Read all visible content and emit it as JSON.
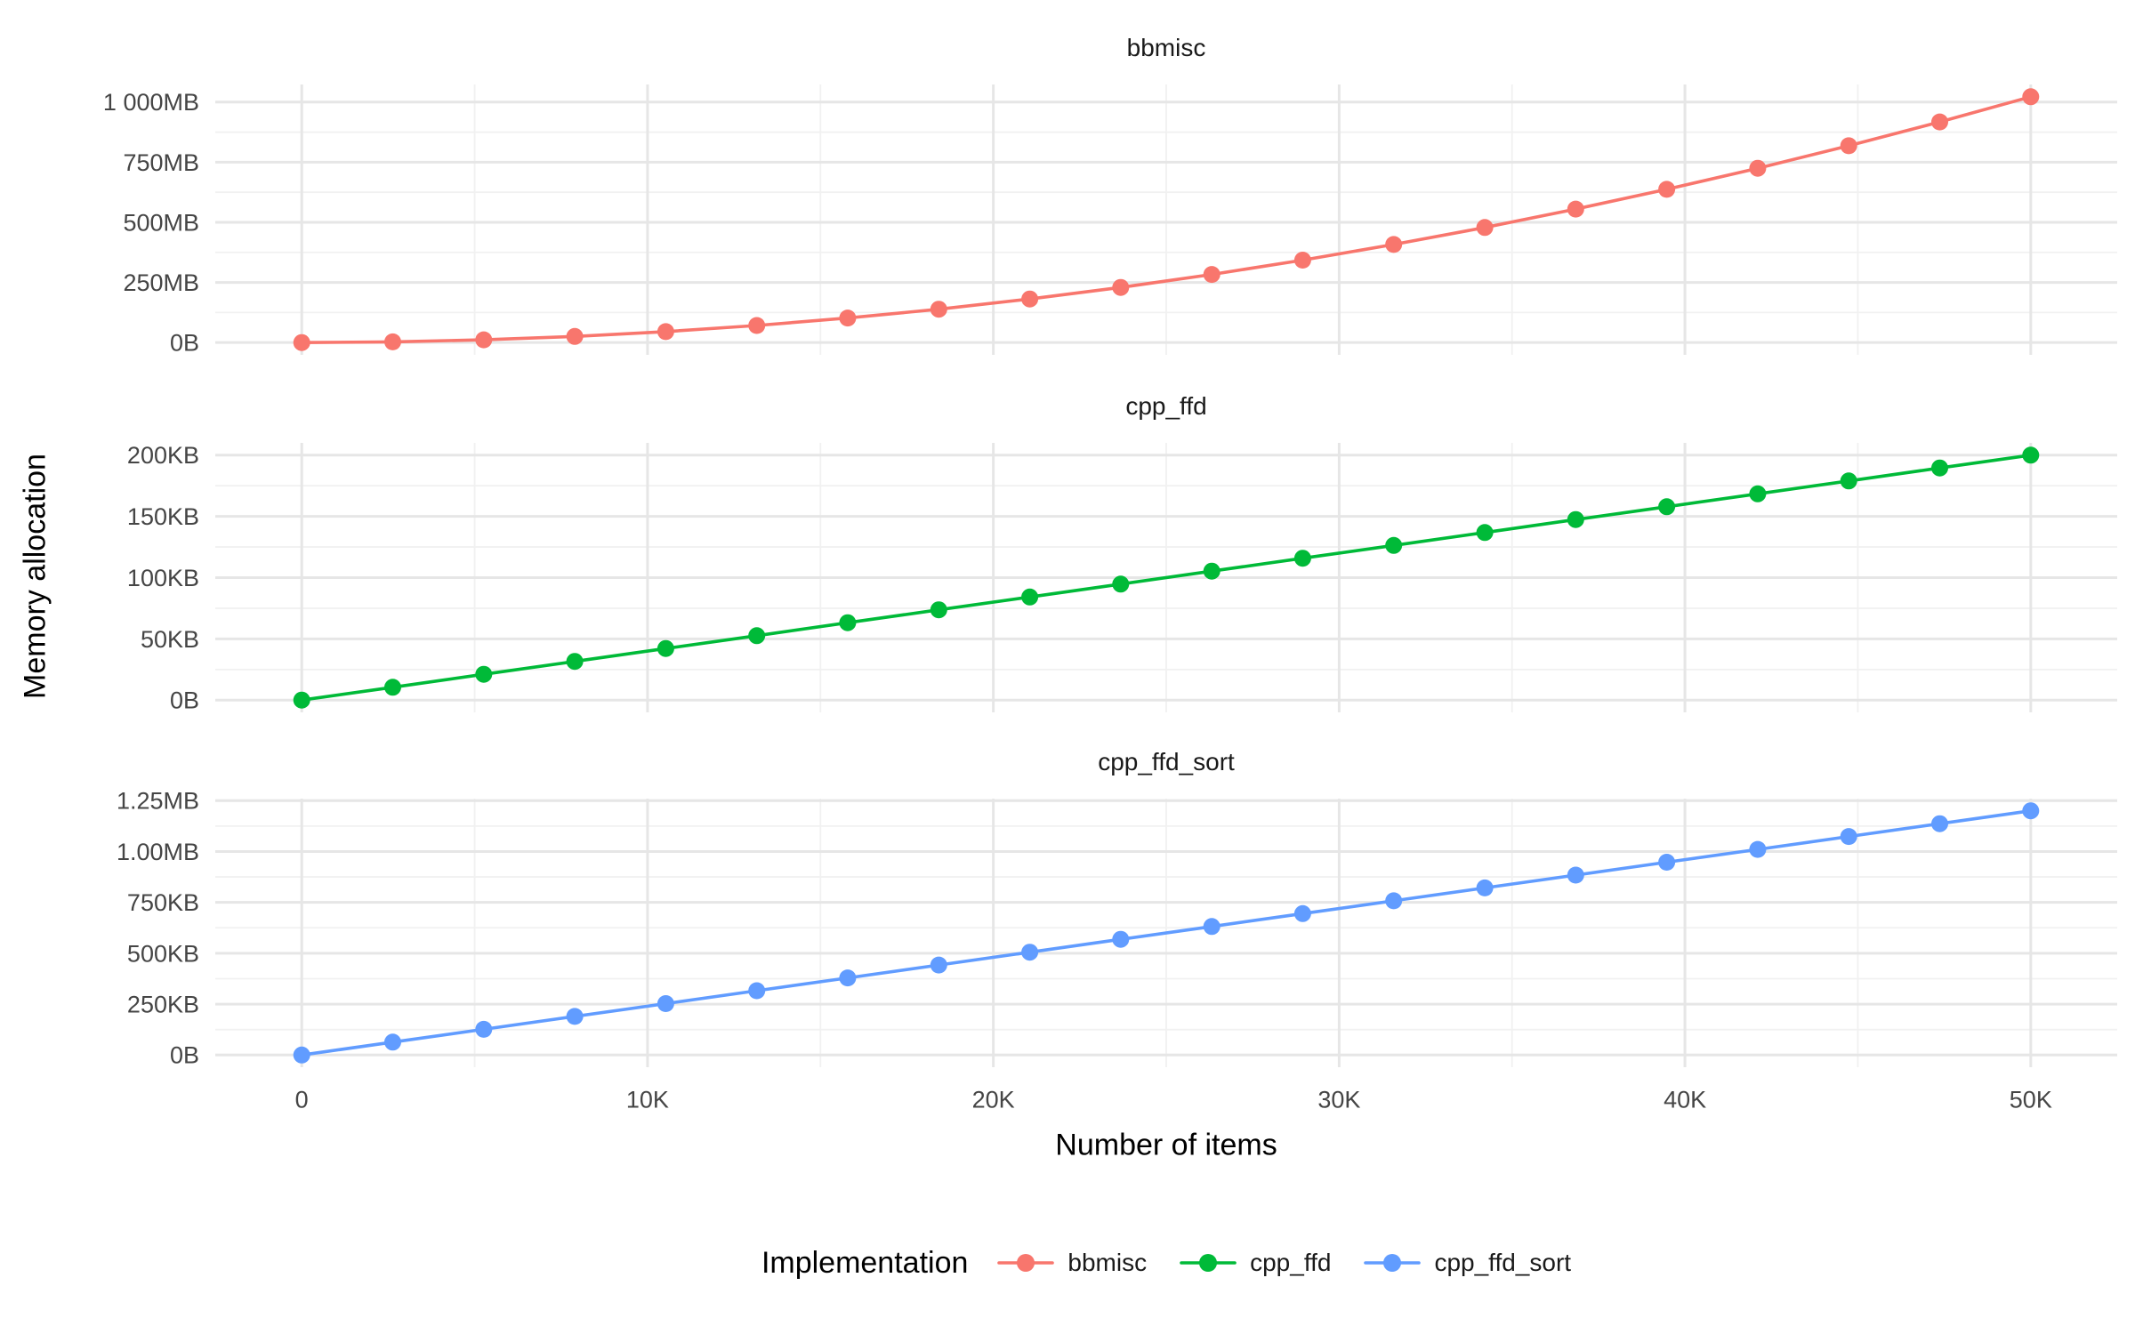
{
  "chart_data": {
    "type": "line",
    "xlabel": "Number of items",
    "ylabel": "Memory allocation",
    "grid": true,
    "legend": {
      "title": "Implementation",
      "position": "bottom",
      "entries": [
        {
          "label": "bbmisc",
          "color": "#F8766D"
        },
        {
          "label": "cpp_ffd",
          "color": "#00BA38"
        },
        {
          "label": "cpp_ffd_sort",
          "color": "#619CFF"
        }
      ]
    },
    "x": [
      0,
      2632,
      5263,
      7895,
      10526,
      13158,
      15789,
      18421,
      21053,
      23684,
      26316,
      28947,
      31579,
      34211,
      36842,
      39474,
      42105,
      44737,
      47368,
      50000
    ],
    "x_range": [
      -2500,
      52500
    ],
    "x_ticks": [
      {
        "value": 0,
        "label": "0"
      },
      {
        "value": 10000,
        "label": "10K"
      },
      {
        "value": 20000,
        "label": "20K"
      },
      {
        "value": 30000,
        "label": "30K"
      },
      {
        "value": 40000,
        "label": "40K"
      },
      {
        "value": 50000,
        "label": "50K"
      }
    ],
    "facets": [
      {
        "name": "bbmisc",
        "color": "#F8766D",
        "unit": "MB",
        "values": [
          0,
          2.8,
          11.3,
          25.5,
          45.3,
          70.8,
          101.9,
          138.7,
          181.2,
          229.3,
          283.1,
          342.6,
          407.7,
          478.4,
          554.9,
          637.0,
          724.7,
          818.2,
          917.3,
          1022
        ],
        "y_range": [
          -51.1,
          1073.1
        ],
        "y_ticks": [
          {
            "value": 0,
            "label": "0B"
          },
          {
            "value": 250,
            "label": "250MB"
          },
          {
            "value": 500,
            "label": "500MB"
          },
          {
            "value": 750,
            "label": "750MB"
          },
          {
            "value": 1000,
            "label": "1 000MB"
          }
        ]
      },
      {
        "name": "cpp_ffd",
        "color": "#00BA38",
        "unit": "KB",
        "values": [
          0,
          10.5,
          21.1,
          31.6,
          42.1,
          52.6,
          63.2,
          73.7,
          84.2,
          94.7,
          105.3,
          115.8,
          126.3,
          136.8,
          147.4,
          157.9,
          168.4,
          178.9,
          189.5,
          200
        ],
        "y_range": [
          -10,
          210
        ],
        "y_ticks": [
          {
            "value": 0,
            "label": "0B"
          },
          {
            "value": 50,
            "label": "50KB"
          },
          {
            "value": 100,
            "label": "100KB"
          },
          {
            "value": 150,
            "label": "150KB"
          },
          {
            "value": 200,
            "label": "200KB"
          }
        ]
      },
      {
        "name": "cpp_ffd_sort",
        "color": "#619CFF",
        "unit": "KB",
        "values": [
          0,
          63.2,
          126.3,
          189.5,
          252.6,
          315.8,
          378.9,
          442.1,
          505.3,
          568.4,
          631.6,
          694.7,
          757.9,
          821.1,
          884.2,
          947.4,
          1010.5,
          1073.7,
          1136.8,
          1200
        ],
        "y_range": [
          -60,
          1260
        ],
        "y_ticks": [
          {
            "value": 0,
            "label": "0B"
          },
          {
            "value": 250,
            "label": "250KB"
          },
          {
            "value": 500,
            "label": "500KB"
          },
          {
            "value": 750,
            "label": "750KB"
          },
          {
            "value": 1000,
            "label": "1.00MB"
          },
          {
            "value": 1250,
            "label": "1.25MB"
          }
        ]
      }
    ]
  }
}
